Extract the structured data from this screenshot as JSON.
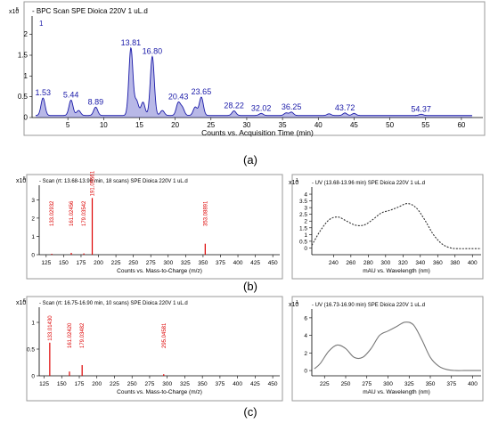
{
  "subfigure_labels": [
    "(a)",
    "(b)",
    "(c)"
  ],
  "chart_data": [
    {
      "panel": "a",
      "type": "line",
      "title": "BPC Scan SPE Dioica 220V 1 uL.d",
      "trace_index": "1",
      "xlabel": "Counts vs. Acquisition Time (min)",
      "y_multiplier": "x10",
      "y_exponent": "5",
      "xlim": [
        0,
        63
      ],
      "ylim": [
        0,
        2.4
      ],
      "xticks": [
        5,
        10,
        15,
        20,
        25,
        30,
        35,
        40,
        45,
        50,
        55,
        60
      ],
      "yticks": [
        0,
        0.5,
        1,
        1.5,
        2
      ],
      "baseline": 0.05,
      "fill": true,
      "peaks": [
        {
          "rt": 1.53,
          "h": 0.42,
          "label": "1.53"
        },
        {
          "rt": 5.44,
          "h": 0.37,
          "label": "5.44"
        },
        {
          "rt": 6.5,
          "h": 0.12,
          "label": ""
        },
        {
          "rt": 8.89,
          "h": 0.2,
          "label": "8.89"
        },
        {
          "rt": 13.81,
          "h": 1.62,
          "label": "13.81"
        },
        {
          "rt": 14.6,
          "h": 0.35,
          "label": ""
        },
        {
          "rt": 15.5,
          "h": 0.32,
          "label": ""
        },
        {
          "rt": 16.8,
          "h": 1.42,
          "label": "16.80"
        },
        {
          "rt": 18.2,
          "h": 0.12,
          "label": ""
        },
        {
          "rt": 20.43,
          "h": 0.3,
          "label": "20.43"
        },
        {
          "rt": 21.0,
          "h": 0.18,
          "label": ""
        },
        {
          "rt": 22.8,
          "h": 0.2,
          "label": ""
        },
        {
          "rt": 23.65,
          "h": 0.44,
          "label": "23.65"
        },
        {
          "rt": 28.22,
          "h": 0.11,
          "label": "28.22"
        },
        {
          "rt": 32.02,
          "h": 0.05,
          "label": "32.02"
        },
        {
          "rt": 35.5,
          "h": 0.06,
          "label": ""
        },
        {
          "rt": 36.25,
          "h": 0.08,
          "label": "36.25"
        },
        {
          "rt": 41.5,
          "h": 0.04,
          "label": ""
        },
        {
          "rt": 43.72,
          "h": 0.06,
          "label": "43.72"
        },
        {
          "rt": 45.0,
          "h": 0.05,
          "label": ""
        },
        {
          "rt": 54.37,
          "h": 0.03,
          "label": "54.37"
        }
      ]
    },
    {
      "panel": "b-ms",
      "type": "bar",
      "title": "Scan (rt: 13.68-13.96 min, 18 scans) SPE Dioica 220V 1 uL.d",
      "xlabel": "Counts vs. Mass-to-Charge (m/z)",
      "y_multiplier": "x10",
      "y_exponent": "5",
      "xlim": [
        115,
        460
      ],
      "ylim": [
        0,
        3.7
      ],
      "xticks": [
        125,
        150,
        175,
        200,
        225,
        250,
        275,
        300,
        325,
        350,
        375,
        400,
        425,
        450
      ],
      "yticks": [
        0,
        1,
        2,
        3
      ],
      "peaks": [
        {
          "mz": 133.02932,
          "h": 0.05,
          "label": "133.02932"
        },
        {
          "mz": 161.02456,
          "h": 0.1,
          "label": "161.02456"
        },
        {
          "mz": 179.03542,
          "h": 0.07,
          "label": "179.03542"
        },
        {
          "mz": 191.05661,
          "h": 3.1,
          "label": "191.05661"
        },
        {
          "mz": 353.08891,
          "h": 0.6,
          "label": "353.08891"
        }
      ]
    },
    {
      "panel": "b-uv",
      "type": "line",
      "title": "UV (13.68-13.96 min) SPE Dioica 220V 1 uL.d",
      "xlabel": "mAU vs. Wavelength (nm)",
      "y_multiplier": "x10",
      "y_exponent": "1",
      "xlim": [
        215,
        410
      ],
      "ylim": [
        -0.5,
        4.4
      ],
      "xticks": [
        240,
        260,
        280,
        300,
        320,
        340,
        360,
        380,
        400
      ],
      "yticks": [
        0,
        0.5,
        1,
        1.5,
        2,
        2.5,
        3,
        3.5,
        4
      ],
      "dashed": true,
      "x": [
        215,
        225,
        235,
        245,
        255,
        265,
        275,
        285,
        295,
        305,
        315,
        325,
        335,
        345,
        355,
        365,
        375,
        385,
        395,
        405,
        410
      ],
      "y": [
        0.2,
        1.3,
        2.1,
        2.3,
        2.0,
        1.7,
        1.7,
        2.1,
        2.6,
        2.8,
        3.05,
        3.3,
        3.0,
        2.1,
        1.0,
        0.3,
        0.0,
        -0.05,
        -0.05,
        -0.05,
        -0.05
      ]
    },
    {
      "panel": "c-ms",
      "type": "bar",
      "title": "Scan (rt: 16.75-16.90 min, 10 scans) SPE Dioica 220V 1 uL.d",
      "xlabel": "Counts vs. Mass-to-Charge (m/z)",
      "y_multiplier": "x10",
      "y_exponent": "6",
      "xlim": [
        118,
        460
      ],
      "ylim": [
        0,
        1.25
      ],
      "xticks": [
        125,
        150,
        175,
        200,
        225,
        250,
        275,
        300,
        325,
        350,
        375,
        400,
        425,
        450
      ],
      "yticks": [
        0,
        0.5,
        1
      ],
      "peaks": [
        {
          "mz": 133.0143,
          "h": 0.62,
          "label": "133.01430"
        },
        {
          "mz": 161.0242,
          "h": 0.08,
          "label": "161.02420"
        },
        {
          "mz": 179.03482,
          "h": 0.2,
          "label": "179.03482"
        },
        {
          "mz": 295.04581,
          "h": 0.03,
          "label": "295.04581"
        }
      ]
    },
    {
      "panel": "c-uv",
      "type": "line",
      "title": "UV (16.73-16.90 min) SPE Dioica 220V 1 uL.d",
      "xlabel": "mAU vs. Wavelength (nm)",
      "y_multiplier": "x10",
      "y_exponent": "1",
      "xlim": [
        210,
        410
      ],
      "ylim": [
        -0.6,
        6.8
      ],
      "xticks": [
        225,
        250,
        275,
        300,
        325,
        350,
        375,
        400
      ],
      "yticks": [
        0,
        2,
        4,
        6
      ],
      "dashed": false,
      "x": [
        213,
        220,
        230,
        240,
        250,
        260,
        270,
        280,
        290,
        300,
        310,
        320,
        330,
        340,
        350,
        360,
        370,
        380,
        390,
        400,
        410
      ],
      "y": [
        0.2,
        0.8,
        2.2,
        2.9,
        2.5,
        1.5,
        1.5,
        2.5,
        4.0,
        4.5,
        5.0,
        5.5,
        5.2,
        3.5,
        1.5,
        0.5,
        0.1,
        0.0,
        0.0,
        0.0,
        0.0
      ]
    }
  ]
}
